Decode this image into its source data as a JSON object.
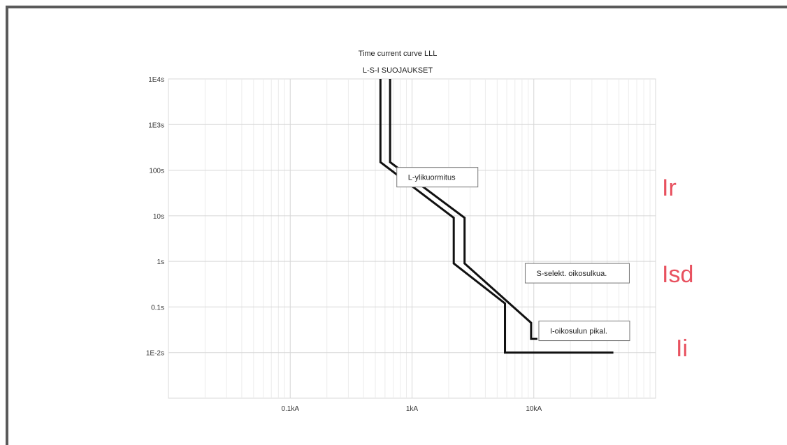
{
  "chart_data": {
    "type": "line",
    "title": "Time current curve LLL",
    "subtitle": "L-S-I SUOJAUKSET",
    "x_scale": "log",
    "y_scale": "log",
    "xlim": [
      0.01,
      100
    ],
    "ylim": [
      0.001,
      10000
    ],
    "grid": true,
    "x_tick_labels": [
      {
        "value": 0.1,
        "label": "0.1kA"
      },
      {
        "value": 1,
        "label": "1kA"
      },
      {
        "value": 10,
        "label": "10kA"
      }
    ],
    "y_tick_labels": [
      {
        "value": 10000,
        "label": "1E4s"
      },
      {
        "value": 1000,
        "label": "1E3s"
      },
      {
        "value": 100,
        "label": "100s"
      },
      {
        "value": 10,
        "label": "10s"
      },
      {
        "value": 1,
        "label": "1s"
      },
      {
        "value": 0.1,
        "label": "0.1s"
      },
      {
        "value": 0.01,
        "label": "1E-2s"
      }
    ],
    "series": [
      {
        "color": "#111111",
        "points": [
          {
            "x": 0.55,
            "y": 10000
          },
          {
            "x": 0.55,
            "y": 150
          },
          {
            "x": 2.2,
            "y": 9
          },
          {
            "x": 2.2,
            "y": 0.9
          },
          {
            "x": 5.8,
            "y": 0.12
          },
          {
            "x": 5.8,
            "y": 0.01
          },
          {
            "x": 45,
            "y": 0.01
          }
        ]
      },
      {
        "color": "#111111",
        "points": [
          {
            "x": 0.66,
            "y": 10000
          },
          {
            "x": 0.66,
            "y": 150
          },
          {
            "x": 2.7,
            "y": 9
          },
          {
            "x": 2.7,
            "y": 0.9
          },
          {
            "x": 9.5,
            "y": 0.045
          },
          {
            "x": 9.5,
            "y": 0.02
          },
          {
            "x": 10.7,
            "y": 0.02
          }
        ]
      }
    ],
    "annotations": [
      {
        "text": "L-ylikuormitus",
        "x": 0.75,
        "y": 70
      },
      {
        "text": "S-selekt. oikosulkua.",
        "x": 8.5,
        "y": 0.55
      },
      {
        "text": "I-oikosulun pikal.",
        "x": 11,
        "y": 0.03
      }
    ]
  },
  "side_labels": [
    {
      "name": "side-label-ir",
      "text": "Ir",
      "color": "#e8515f"
    },
    {
      "name": "side-label-isd",
      "text": "Isd",
      "color": "#e8515f"
    },
    {
      "name": "side-label-ii",
      "text": "Ii",
      "color": "#e8515f"
    }
  ]
}
